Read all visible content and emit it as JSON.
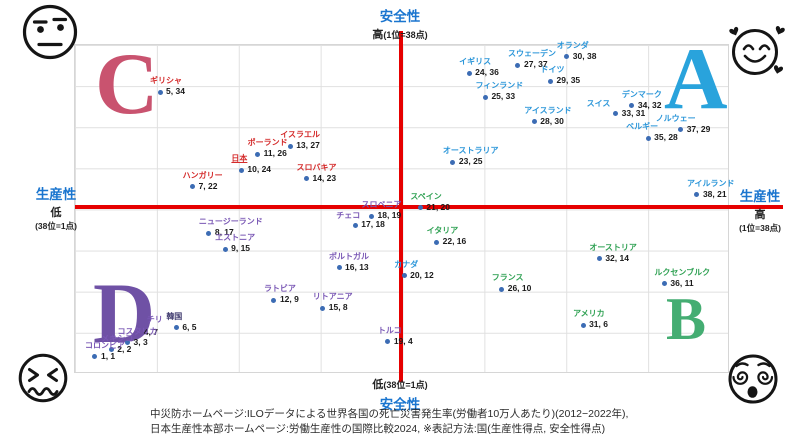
{
  "axes": {
    "top": {
      "title": "安全性",
      "level": "高",
      "note": "(1位=38点)"
    },
    "bottom": {
      "title": "安全性",
      "level": "低",
      "note": "(38位=1点)"
    },
    "left": {
      "title": "生産性",
      "level": "低",
      "note": "(38位=1点)"
    },
    "right": {
      "title": "生産性",
      "level": "高",
      "note": "(1位=38点)"
    }
  },
  "quadrants": {
    "A": {
      "letter": "A",
      "color": "#29a3dc",
      "position": "top-right"
    },
    "B": {
      "letter": "B",
      "color": "#44ad72",
      "position": "bottom-right"
    },
    "C": {
      "letter": "C",
      "color": "#c9536f",
      "position": "top-left"
    },
    "D": {
      "letter": "D",
      "color": "#6f51a5",
      "position": "bottom-left"
    }
  },
  "corner_emojis": {
    "top_left": "unamused-face",
    "top_right": "smiling-face-with-hearts",
    "bottom_left": "confounded-face",
    "bottom_right": "dizzy-face"
  },
  "colors": {
    "axis_title": "#1a75cf",
    "red_axis_line": "#e60000",
    "dot": "#3c6cb4",
    "value_text": "#1a1a1a",
    "groups": {
      "A": "#2b96d9",
      "B": "#2fa153",
      "C": "#d42a2a",
      "D": "#7a58b5"
    }
  },
  "footer": {
    "line1": "中災防ホームページ:ILOデータによる世界各国の死亡災害発生率(労働者10万人あたり)(2012−2022年),",
    "line2": "日本生産性本部ホームページ:労働生産性の国際比較2024, ※表記方法:国(生産性得点, 安全性得点)"
  },
  "chart_data": {
    "type": "scatter",
    "xlabel": "生産性 (低 38位=1点 → 高 1位=38点)",
    "ylabel": "安全性 (低 38位=1点 → 高 1位=38点)",
    "xlim": [
      0,
      39
    ],
    "ylim": [
      0,
      39
    ],
    "grid": true,
    "notation": "国(生産性得点, 安全性得点)",
    "points": [
      {
        "name": "ギリシャ",
        "x": 5,
        "y": 34,
        "group": "C",
        "dy": 3
      },
      {
        "name": "イスラエル",
        "x": 13,
        "y": 27,
        "group": "C"
      },
      {
        "name": "ポーランド",
        "x": 11,
        "y": 26,
        "group": "C"
      },
      {
        "name": "日本",
        "x": 10,
        "y": 24,
        "group": "C",
        "underline": true
      },
      {
        "name": "ハンガリー",
        "x": 7,
        "y": 22,
        "group": "C"
      },
      {
        "name": "スロバキア",
        "x": 14,
        "y": 23,
        "group": "C"
      },
      {
        "name": "オランダ",
        "x": 30,
        "y": 38,
        "group": "A"
      },
      {
        "name": "スウェーデン",
        "x": 27,
        "y": 37,
        "group": "A"
      },
      {
        "name": "イギリス",
        "x": 24,
        "y": 36,
        "group": "A"
      },
      {
        "name": "ドイツ",
        "x": 29,
        "y": 35,
        "group": "A"
      },
      {
        "name": "フィンランド",
        "x": 25,
        "y": 33,
        "group": "A"
      },
      {
        "name": "デンマーク",
        "x": 34,
        "y": 32,
        "group": "A"
      },
      {
        "name": "スイス",
        "x": 33,
        "y": 31,
        "group": "A",
        "name_off": [
          -29,
          -15
        ]
      },
      {
        "name": "アイスランド",
        "x": 28,
        "y": 30,
        "group": "A"
      },
      {
        "name": "ノルウェー",
        "x": 37,
        "y": 29,
        "group": "A",
        "name_off": [
          -25,
          -16
        ]
      },
      {
        "name": "ベルギー",
        "x": 35,
        "y": 28,
        "group": "A",
        "name_off": [
          -22,
          -16
        ]
      },
      {
        "name": "オーストラリア",
        "x": 23,
        "y": 25,
        "group": "A"
      },
      {
        "name": "アイルランド",
        "x": 38,
        "y": 21,
        "group": "A"
      },
      {
        "name": "スペイン",
        "x": 21,
        "y": 20,
        "group": "B",
        "dy": 5
      },
      {
        "name": "イタリア",
        "x": 22,
        "y": 16,
        "group": "B",
        "dy": 7
      },
      {
        "name": "オーストリア",
        "x": 32,
        "y": 14,
        "group": "B",
        "dy": 7
      },
      {
        "name": "ルクセンブルク",
        "x": 36,
        "y": 11,
        "group": "B",
        "dy": 8
      },
      {
        "name": "フランス",
        "x": 26,
        "y": 10,
        "group": "B",
        "dy": 5
      },
      {
        "name": "アメリカ",
        "x": 31,
        "y": 6,
        "group": "B",
        "dy": 9
      },
      {
        "name": "カナダ",
        "x": 20,
        "y": 12,
        "group": "A",
        "dy": 8
      },
      {
        "name": "スロベニア",
        "x": 18,
        "y": 19,
        "group": "D",
        "dy": 5
      },
      {
        "name": "チェコ",
        "x": 17,
        "y": 18,
        "group": "D",
        "dy": 6,
        "name_off": [
          -19,
          -14
        ]
      },
      {
        "name": "ニュージーランド",
        "x": 8,
        "y": 17,
        "group": "D",
        "dy": 6
      },
      {
        "name": "エストニア",
        "x": 9,
        "y": 15,
        "group": "D",
        "dy": 6
      },
      {
        "name": "ポルトガル",
        "x": 16,
        "y": 13,
        "group": "D",
        "dy": 8
      },
      {
        "name": "ラトビア",
        "x": 12,
        "y": 9,
        "group": "D",
        "dy": 8
      },
      {
        "name": "リトアニア",
        "x": 15,
        "y": 8,
        "group": "D",
        "dy": 8
      },
      {
        "name": "チリ",
        "x": 4,
        "y": 7,
        "group": "D",
        "dy": 4,
        "hide_dot": true,
        "name_off": [
          3,
          3
        ],
        "val_off": [
          0,
          16
        ]
      },
      {
        "name": "韓国",
        "x": 6,
        "y": 5,
        "group": "D",
        "dy": 3,
        "color": "#3f3a6e"
      },
      {
        "name": "コスタリカ",
        "x": 3,
        "y": 3,
        "group": "D",
        "dy": 2
      },
      {
        "name": "メキシコ",
        "x": 2,
        "y": 2,
        "group": "D",
        "dy": 1
      },
      {
        "name": "コロンビア",
        "x": 1,
        "y": 1,
        "group": "D"
      },
      {
        "name": "トルコ",
        "x": 19,
        "y": 4,
        "group": "D",
        "dy": 9
      }
    ]
  }
}
